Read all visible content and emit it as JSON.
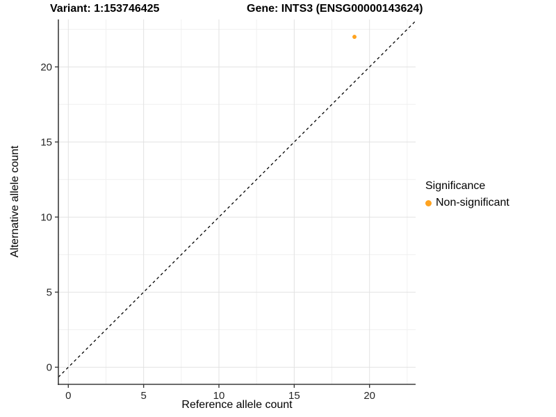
{
  "header": {
    "variant_title": "Variant: 1:153746425",
    "gene_title": "Gene: INTS3 (ENSG00000143624)"
  },
  "chart_data": {
    "type": "scatter",
    "title_left": "Variant: 1:153746425",
    "title_right": "Gene: INTS3 (ENSG00000143624)",
    "xlabel": "Reference allele count",
    "ylabel": "Alternative allele count",
    "xlim": [
      -0.66,
      23.06
    ],
    "ylim": [
      -1.14,
      23.16
    ],
    "x_ticks": [
      0,
      5,
      10,
      15,
      20
    ],
    "y_ticks": [
      0,
      5,
      10,
      15,
      20
    ],
    "minor_gridlines_x": [
      2.5,
      7.5,
      12.5,
      17.5,
      22.5
    ],
    "minor_gridlines_y": [
      2.5,
      7.5,
      12.5,
      17.5,
      22.5
    ],
    "grid": true,
    "identity_line": {
      "equation": "y = x",
      "style": "dashed",
      "color": "#000000"
    },
    "series": [
      {
        "name": "Non-significant",
        "color": "#FFA320",
        "points": [
          {
            "x": 19,
            "y": 22
          }
        ]
      }
    ],
    "legend_position": "right"
  },
  "legend": {
    "title": "Significance",
    "items": [
      {
        "label": "Non-significant",
        "color": "#FFA320",
        "marker": "dot-icon"
      }
    ]
  },
  "colors": {
    "background": "#FFFFFF",
    "point_orange": "#FFA320",
    "major_grid": "#E2E2E2",
    "minor_grid": "#F0F0F0",
    "axis_line": "#3A3A3A",
    "tick_label": "#262626",
    "title_text": "#000000"
  }
}
